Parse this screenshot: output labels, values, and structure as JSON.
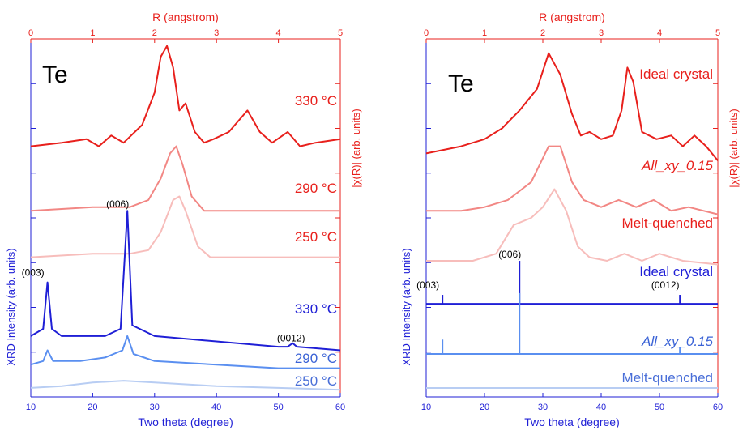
{
  "chart_data": [
    {
      "type": "line",
      "material": "Te",
      "xlabel_bottom": "Two theta (degree)",
      "xlim_bottom": [
        10,
        60
      ],
      "xticks_bottom": [
        10,
        20,
        30,
        40,
        50,
        60
      ],
      "ylabel_left": "XRD Intensity (arb. units)",
      "xlabel_top": "R (angstrom)",
      "xlim_top": [
        0,
        5
      ],
      "xticks_top": [
        0,
        1,
        2,
        3,
        4,
        5
      ],
      "ylabel_right": "|χ(R)| (arb. units)",
      "colors": {
        "axis_bottom": "#1f1fd6",
        "axis_top": "#e8201c"
      },
      "top_series": [
        {
          "name": "330 °C",
          "color": "#e8201c",
          "baseline": 0.7,
          "points": [
            [
              0,
              0.7
            ],
            [
              0.5,
              0.71
            ],
            [
              0.9,
              0.72
            ],
            [
              1.1,
              0.7
            ],
            [
              1.3,
              0.73
            ],
            [
              1.5,
              0.71
            ],
            [
              1.8,
              0.76
            ],
            [
              2.0,
              0.85
            ],
            [
              2.1,
              0.95
            ],
            [
              2.2,
              0.98
            ],
            [
              2.3,
              0.92
            ],
            [
              2.4,
              0.8
            ],
            [
              2.5,
              0.82
            ],
            [
              2.65,
              0.74
            ],
            [
              2.8,
              0.71
            ],
            [
              2.95,
              0.72
            ],
            [
              3.2,
              0.74
            ],
            [
              3.5,
              0.8
            ],
            [
              3.7,
              0.74
            ],
            [
              3.9,
              0.71
            ],
            [
              4.15,
              0.74
            ],
            [
              4.35,
              0.7
            ],
            [
              4.6,
              0.71
            ],
            [
              5,
              0.72
            ]
          ],
          "peaks_R_ang": [
            2.2,
            3.5,
            4.15
          ]
        },
        {
          "name": "290 °C",
          "color": "#f28784",
          "baseline": 0.52,
          "points": [
            [
              0,
              0.52
            ],
            [
              1.0,
              0.53
            ],
            [
              1.6,
              0.53
            ],
            [
              1.9,
              0.55
            ],
            [
              2.1,
              0.61
            ],
            [
              2.25,
              0.68
            ],
            [
              2.35,
              0.7
            ],
            [
              2.45,
              0.65
            ],
            [
              2.6,
              0.56
            ],
            [
              2.8,
              0.52
            ],
            [
              3.5,
              0.52
            ],
            [
              5,
              0.52
            ]
          ],
          "peaks_R_ang": [
            2.35
          ]
        },
        {
          "name": "250 °C",
          "color": "#f7bdbb",
          "baseline": 0.39,
          "points": [
            [
              0,
              0.39
            ],
            [
              1.0,
              0.4
            ],
            [
              1.6,
              0.4
            ],
            [
              1.9,
              0.41
            ],
            [
              2.1,
              0.46
            ],
            [
              2.3,
              0.55
            ],
            [
              2.4,
              0.56
            ],
            [
              2.5,
              0.52
            ],
            [
              2.7,
              0.42
            ],
            [
              2.9,
              0.39
            ],
            [
              5,
              0.39
            ]
          ],
          "peaks_R_ang": [
            2.38
          ]
        }
      ],
      "bottom_series": [
        {
          "name": "330 °C",
          "color": "#1f1fd6",
          "baseline": 0.17,
          "points": [
            [
              10,
              0.17
            ],
            [
              12.0,
              0.19
            ],
            [
              12.7,
              0.32
            ],
            [
              13.4,
              0.19
            ],
            [
              15,
              0.17
            ],
            [
              22,
              0.17
            ],
            [
              24.5,
              0.19
            ],
            [
              25.6,
              0.52
            ],
            [
              26.4,
              0.2
            ],
            [
              30,
              0.17
            ],
            [
              50,
              0.14
            ],
            [
              51.5,
              0.14
            ],
            [
              52.3,
              0.15
            ],
            [
              53,
              0.14
            ],
            [
              60,
              0.13
            ]
          ],
          "peaks": [
            {
              "label": "(003)",
              "two_theta_deg": 12.7
            },
            {
              "label": "(006)",
              "two_theta_deg": 25.6
            },
            {
              "label": "(0012)",
              "two_theta_deg": 52.3
            }
          ]
        },
        {
          "name": "290 °C",
          "color": "#5a8ff0",
          "baseline": 0.09,
          "points": [
            [
              10,
              0.09
            ],
            [
              12,
              0.1
            ],
            [
              12.7,
              0.13
            ],
            [
              13.6,
              0.1
            ],
            [
              18,
              0.1
            ],
            [
              22,
              0.11
            ],
            [
              24.8,
              0.13
            ],
            [
              25.6,
              0.17
            ],
            [
              26.6,
              0.12
            ],
            [
              30,
              0.1
            ],
            [
              40,
              0.09
            ],
            [
              50,
              0.08
            ],
            [
              60,
              0.08
            ]
          ],
          "peaks_two_theta_deg": [
            12.7,
            25.6
          ]
        },
        {
          "name": "250 °C",
          "color": "#b8cdf3",
          "baseline": 0.025,
          "points": [
            [
              10,
              0.025
            ],
            [
              15,
              0.03
            ],
            [
              20,
              0.04
            ],
            [
              25,
              0.045
            ],
            [
              30,
              0.04
            ],
            [
              35,
              0.035
            ],
            [
              40,
              0.03
            ],
            [
              50,
              0.025
            ],
            [
              60,
              0.02
            ]
          ]
        }
      ]
    },
    {
      "type": "line",
      "material": "Te",
      "xlabel_bottom": "Two theta (degree)",
      "xlim_bottom": [
        10,
        60
      ],
      "xticks_bottom": [
        10,
        20,
        30,
        40,
        50,
        60
      ],
      "ylabel_left": "XRD Intensity (arb. units)",
      "xlabel_top": "R (angstrom)",
      "xlim_top": [
        0,
        5
      ],
      "xticks_top": [
        0,
        1,
        2,
        3,
        4,
        5
      ],
      "ylabel_right": "|χ(R)| (arb. units)",
      "colors": {
        "axis_bottom": "#1f1fd6",
        "axis_top": "#e8201c"
      },
      "top_series": [
        {
          "name": "Ideal crystal",
          "color": "#e8201c",
          "baseline": 0.7,
          "points": [
            [
              0,
              0.68
            ],
            [
              0.6,
              0.7
            ],
            [
              1.0,
              0.72
            ],
            [
              1.3,
              0.75
            ],
            [
              1.6,
              0.8
            ],
            [
              1.9,
              0.86
            ],
            [
              2.1,
              0.96
            ],
            [
              2.3,
              0.9
            ],
            [
              2.5,
              0.79
            ],
            [
              2.65,
              0.73
            ],
            [
              2.8,
              0.74
            ],
            [
              3.0,
              0.72
            ],
            [
              3.2,
              0.73
            ],
            [
              3.35,
              0.8
            ],
            [
              3.45,
              0.92
            ],
            [
              3.55,
              0.88
            ],
            [
              3.7,
              0.74
            ],
            [
              3.95,
              0.72
            ],
            [
              4.2,
              0.73
            ],
            [
              4.4,
              0.7
            ],
            [
              4.6,
              0.73
            ],
            [
              4.8,
              0.7
            ],
            [
              5,
              0.66
            ]
          ],
          "peaks_R_ang": [
            2.1,
            3.45
          ]
        },
        {
          "name": "All_xy_0.15",
          "color": "#f28784",
          "baseline": 0.55,
          "points": [
            [
              0,
              0.52
            ],
            [
              0.6,
              0.52
            ],
            [
              1.0,
              0.53
            ],
            [
              1.4,
              0.55
            ],
            [
              1.8,
              0.6
            ],
            [
              2.1,
              0.7
            ],
            [
              2.3,
              0.7
            ],
            [
              2.5,
              0.6
            ],
            [
              2.7,
              0.55
            ],
            [
              3.0,
              0.53
            ],
            [
              3.3,
              0.55
            ],
            [
              3.6,
              0.53
            ],
            [
              3.9,
              0.55
            ],
            [
              4.2,
              0.52
            ],
            [
              4.5,
              0.53
            ],
            [
              5,
              0.51
            ]
          ],
          "peaks_R_ang": [
            2.2
          ]
        },
        {
          "name": "Melt-quenched",
          "color": "#f7bdbb",
          "baseline": 0.38,
          "points": [
            [
              0,
              0.38
            ],
            [
              0.8,
              0.38
            ],
            [
              1.2,
              0.4
            ],
            [
              1.5,
              0.48
            ],
            [
              1.8,
              0.5
            ],
            [
              2.0,
              0.53
            ],
            [
              2.2,
              0.58
            ],
            [
              2.4,
              0.52
            ],
            [
              2.6,
              0.42
            ],
            [
              2.8,
              0.39
            ],
            [
              3.1,
              0.38
            ],
            [
              3.4,
              0.4
            ],
            [
              3.7,
              0.38
            ],
            [
              4.0,
              0.4
            ],
            [
              4.4,
              0.38
            ],
            [
              5,
              0.37
            ]
          ],
          "peaks_R_ang": [
            2.2
          ]
        }
      ],
      "bottom_series": [
        {
          "name": "Ideal crystal",
          "color": "#1f1fd6",
          "baseline": 0.26,
          "sticks": [
            [
              12.8,
              0.025
            ],
            [
              26.0,
              0.12
            ],
            [
              53.5,
              0.025
            ]
          ],
          "peaks": [
            {
              "label": "(003)",
              "two_theta_deg": 12.8
            },
            {
              "label": "(006)",
              "two_theta_deg": 26.0
            },
            {
              "label": "(0012)",
              "two_theta_deg": 53.5
            }
          ]
        },
        {
          "name": "All_xy_0.15",
          "color": "#5a8ff0",
          "baseline": 0.12,
          "sticks": [
            [
              12.8,
              0.04
            ],
            [
              26.0,
              0.17
            ],
            [
              53.5,
              0.02
            ]
          ]
        },
        {
          "name": "Melt-quenched",
          "color": "#b8cdf3",
          "baseline": 0.025,
          "sticks": []
        }
      ]
    }
  ]
}
